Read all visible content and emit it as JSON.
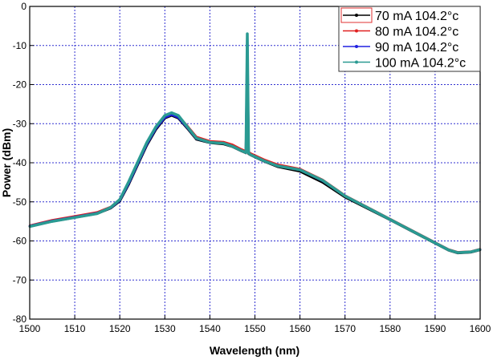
{
  "chart_data": {
    "type": "line",
    "title": "",
    "xlabel": "Wavelength (nm)",
    "ylabel": "Power (dBm)",
    "xlim": [
      1500,
      1600
    ],
    "ylim": [
      -80,
      0
    ],
    "xticks": [
      1500,
      1510,
      1520,
      1530,
      1540,
      1550,
      1560,
      1570,
      1580,
      1590,
      1600
    ],
    "yticks": [
      0,
      -10,
      -20,
      -30,
      -40,
      -50,
      -60,
      -70,
      -80
    ],
    "grid": true,
    "legend_position": "top-right",
    "x": [
      1500,
      1505,
      1510,
      1515,
      1518,
      1520,
      1522,
      1524,
      1526,
      1528,
      1530,
      1531.5,
      1533,
      1535,
      1537,
      1540,
      1543,
      1545,
      1547,
      1548,
      1548.3,
      1548.6,
      1549,
      1552,
      1555,
      1560,
      1565,
      1570,
      1575,
      1580,
      1585,
      1590,
      1593,
      1595,
      1598,
      1600
    ],
    "series": [
      {
        "name": "70 mA 104.2°c",
        "color": "#000000",
        "marker": "square",
        "values": [
          -56.3,
          -55,
          -54,
          -53,
          -51.6,
          -49.8,
          -45.5,
          -40.5,
          -35.5,
          -31.5,
          -28.6,
          -27.9,
          -28.6,
          -31.2,
          -34,
          -34.9,
          -35.2,
          -35.9,
          -37,
          -37.5,
          -12,
          -37.7,
          -38,
          -39.6,
          -41,
          -42.2,
          -45,
          -48.8,
          -51.7,
          -54.6,
          -57.6,
          -60.6,
          -62.4,
          -63.1,
          -62.9,
          -62.3
        ]
      },
      {
        "name": "80 mA 104.2°c",
        "color": "#e02020",
        "marker": "circle",
        "values": [
          -56.1,
          -54.7,
          -53.7,
          -52.7,
          -51.3,
          -49.4,
          -45,
          -40,
          -35,
          -31,
          -28.2,
          -27.5,
          -28.1,
          -30.6,
          -33.4,
          -34.5,
          -34.7,
          -35.4,
          -36.6,
          -37.1,
          -11,
          -37.3,
          -37.6,
          -39.2,
          -40.5,
          -41.6,
          -44.4,
          -48.4,
          -51.4,
          -54.4,
          -57.4,
          -60.4,
          -62.2,
          -62.9,
          -62.7,
          -62.1
        ]
      },
      {
        "name": "90 mA 104.2°c",
        "color": "#2020e0",
        "marker": "triangle-up",
        "values": [
          -56.2,
          -54.9,
          -53.9,
          -52.9,
          -51.5,
          -49.6,
          -45.2,
          -40.2,
          -35.2,
          -31.2,
          -28.4,
          -27.7,
          -28.4,
          -31,
          -33.8,
          -34.8,
          -35,
          -35.8,
          -36.9,
          -37.4,
          -8,
          -37.5,
          -37.9,
          -39.5,
          -40.8,
          -41.8,
          -44.6,
          -48.5,
          -51.5,
          -54.5,
          -57.5,
          -60.5,
          -62.3,
          -63,
          -62.8,
          -62.2
        ]
      },
      {
        "name": "100 mA 104.2°c",
        "color": "#2a9a92",
        "marker": "triangle-down",
        "values": [
          -56.3,
          -55,
          -54,
          -53,
          -51.4,
          -49.4,
          -44.8,
          -39.8,
          -34.8,
          -30.8,
          -27.9,
          -27.2,
          -27.9,
          -30.8,
          -33.7,
          -34.8,
          -35,
          -35.8,
          -36.9,
          -37.4,
          -7,
          -37.5,
          -37.9,
          -39.5,
          -40.8,
          -41.8,
          -44.5,
          -48.5,
          -51.5,
          -54.5,
          -57.5,
          -60.5,
          -62.3,
          -63,
          -62.8,
          -62.2
        ]
      }
    ]
  }
}
